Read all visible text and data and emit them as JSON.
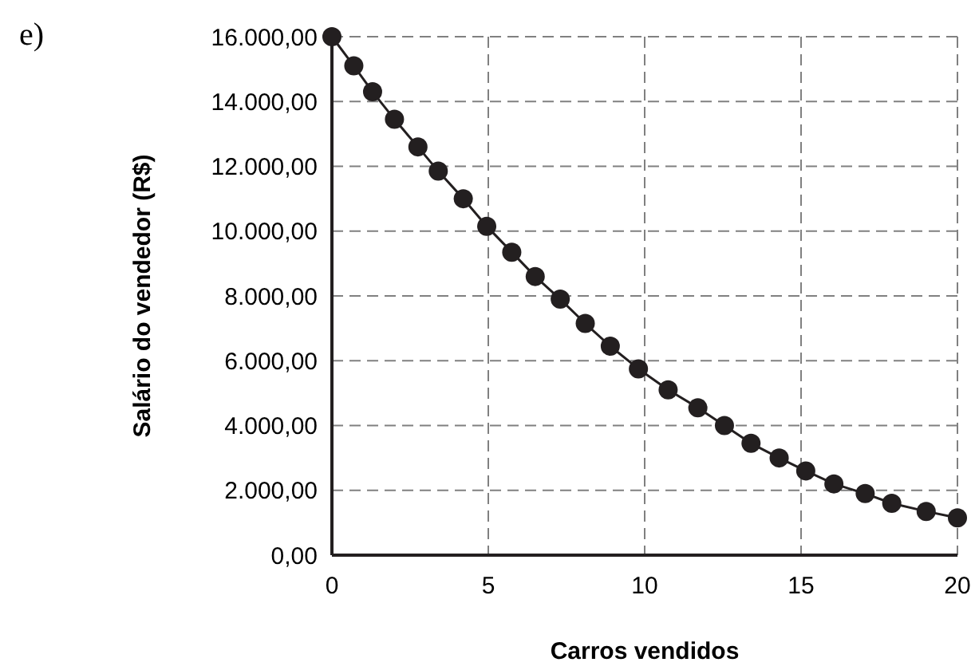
{
  "chart_data": {
    "type": "line",
    "xlabel": "Carros vendidos",
    "ylabel": "Salário do vendedor (R$)",
    "annotations": [
      "e)"
    ],
    "x": [
      0,
      0.7,
      1.3,
      2.0,
      2.75,
      3.4,
      4.2,
      4.95,
      5.75,
      6.5,
      7.3,
      8.1,
      8.9,
      9.8,
      10.75,
      11.7,
      12.55,
      13.4,
      14.3,
      15.15,
      16.05,
      17.05,
      17.9,
      19.0,
      20
    ],
    "series": [
      {
        "color": "#231f20",
        "values": [
          16000,
          15100,
          14300,
          13450,
          12600,
          11850,
          11000,
          10150,
          9350,
          8600,
          7900,
          7150,
          6450,
          5750,
          5100,
          4550,
          4000,
          3450,
          3000,
          2600,
          2200,
          1900,
          1600,
          1350,
          1150
        ]
      }
    ],
    "xlim": [
      0,
      20
    ],
    "xticks": [
      0,
      5,
      10,
      15,
      20
    ],
    "ylim": [
      0,
      16000
    ],
    "yticks": [
      {
        "value": 0,
        "label": "0,00"
      },
      {
        "value": 2000,
        "label": "2.000,00"
      },
      {
        "value": 4000,
        "label": "4.000,00"
      },
      {
        "value": 6000,
        "label": "6.000,00"
      },
      {
        "value": 8000,
        "label": "8.000,00"
      },
      {
        "value": 10000,
        "label": "10.000,00"
      },
      {
        "value": 12000,
        "label": "12.000,00"
      },
      {
        "value": 14000,
        "label": "14.000,00"
      },
      {
        "value": 16000,
        "label": "16.000,00"
      }
    ],
    "grid": true,
    "marker": "circle",
    "line_style": "solid"
  }
}
